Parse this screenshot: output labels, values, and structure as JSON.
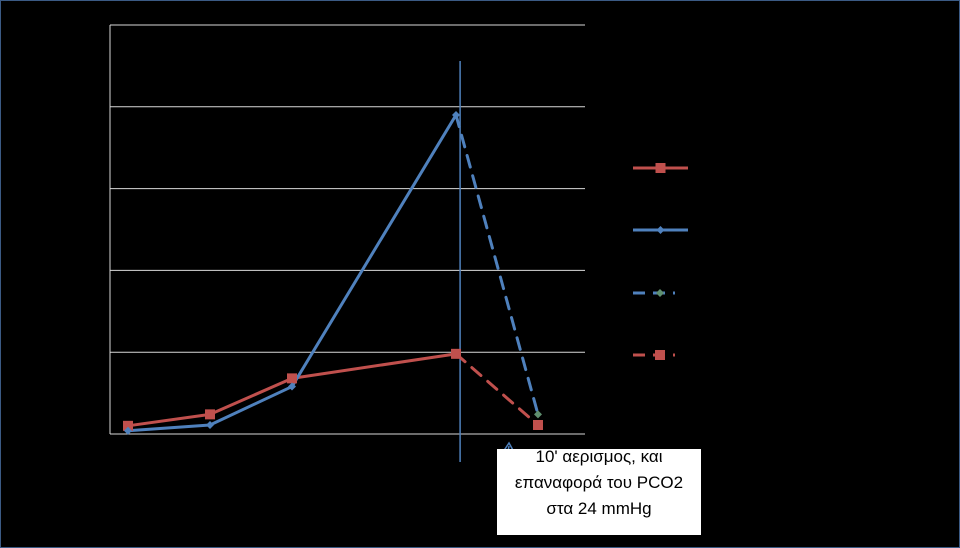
{
  "chart_data": {
    "type": "line",
    "title": "",
    "xlabel": "",
    "ylabel": "",
    "ylim": [
      0,
      5
    ],
    "grid": true,
    "legend_position": "right",
    "series": [
      {
        "id": "red-solid",
        "color": "#c0504d",
        "dashed": false,
        "marker": "square",
        "points": [
          [
            0,
            0.1
          ],
          [
            1,
            0.24
          ],
          [
            2,
            0.68
          ],
          [
            4,
            0.98
          ]
        ]
      },
      {
        "id": "blue-solid",
        "color": "#4f81bd",
        "dashed": false,
        "marker": "diamond",
        "points": [
          [
            0,
            0.04
          ],
          [
            1,
            0.11
          ],
          [
            2,
            0.58
          ],
          [
            4,
            3.9
          ]
        ]
      },
      {
        "id": "blue-dashed",
        "color": "#4f81bd",
        "marker_color": "#5f8f6f",
        "dashed": true,
        "marker": "diamond",
        "points": [
          [
            4,
            3.9
          ],
          [
            5,
            0.24
          ]
        ]
      },
      {
        "id": "red-dashed",
        "color": "#c0504d",
        "dashed": true,
        "marker": "square",
        "points": [
          [
            4,
            0.98
          ],
          [
            5,
            0.11
          ]
        ]
      }
    ],
    "reference_line_x": 4.05,
    "annotation": {
      "text": "10' αερισμος, και επαναφορά του PCO2 στα 24 mmHg",
      "arrow_color": "#4f81bd"
    }
  },
  "colors": {
    "background": "#000000",
    "gridline": "#d9d9d9",
    "frame": "#3b5a84"
  }
}
